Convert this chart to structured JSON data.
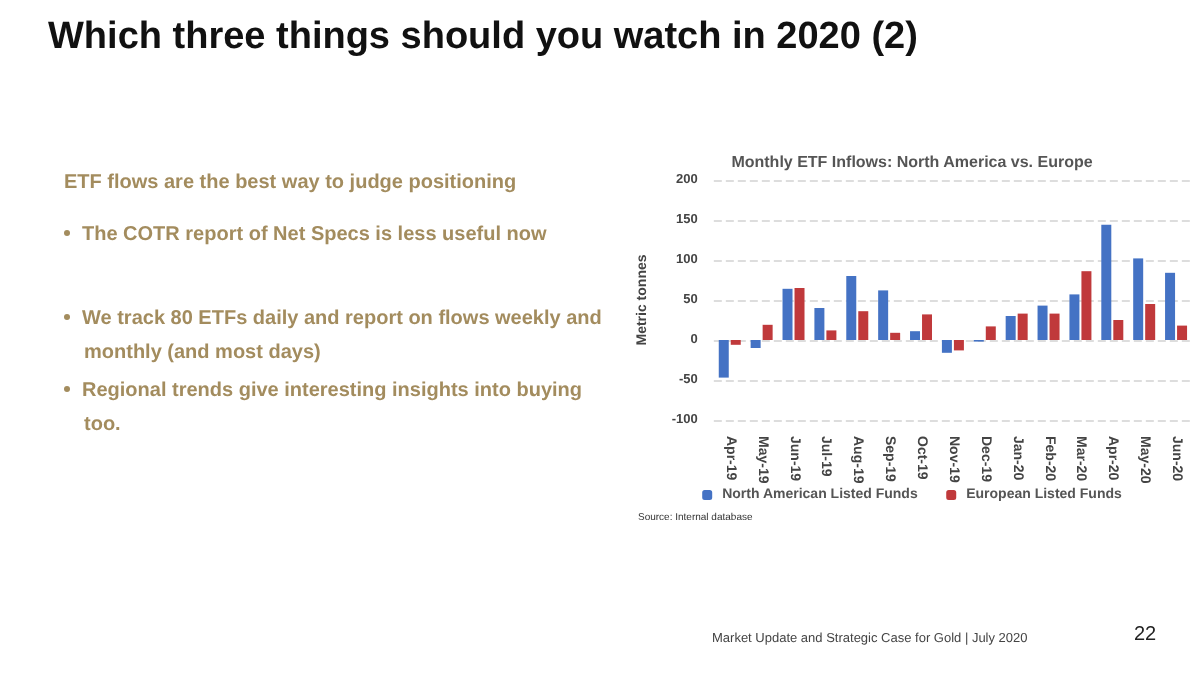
{
  "chart_data": {
    "type": "bar",
    "title": "Monthly ETF Inflows: North America vs. Europe",
    "ylabel": "Metric tonnes",
    "categories": [
      "Apr-19",
      "May-19",
      "Jun-19",
      "Jul-19",
      "Aug-19",
      "Sep-19",
      "Oct-19",
      "Nov-19",
      "Dec-19",
      "Jan-20",
      "Feb-20",
      "Mar-20",
      "Apr-20",
      "May-20",
      "Jun-20"
    ],
    "series": [
      {
        "name": "North American Listed Funds",
        "color": "#4472c4",
        "values": [
          -47,
          -10,
          64,
          40,
          80,
          62,
          11,
          -16,
          -2,
          30,
          43,
          57,
          144,
          102,
          84
        ]
      },
      {
        "name": "European Listed Funds",
        "color": "#c0393b",
        "values": [
          -6,
          19,
          65,
          12,
          36,
          9,
          32,
          -13,
          17,
          33,
          33,
          86,
          25,
          45,
          18
        ]
      }
    ],
    "ylim": [
      -100,
      200
    ],
    "yticks": [
      -100,
      -50,
      0,
      50,
      100,
      150,
      200
    ],
    "grid": "y",
    "legend": "bottom",
    "annotations": [
      "Which three things should you watch in 2020 (2)",
      "ETF flows are the best way to judge positioning",
      "The COTR report of Net Specs is less useful now",
      "We track 80 ETFs daily and report on flows weekly and monthly (and most days)",
      "Regional trends give interesting insights into buying too.",
      "Source: Internal database",
      "Market Update and Strategic Case for Gold | July 2020",
      "22"
    ]
  }
}
